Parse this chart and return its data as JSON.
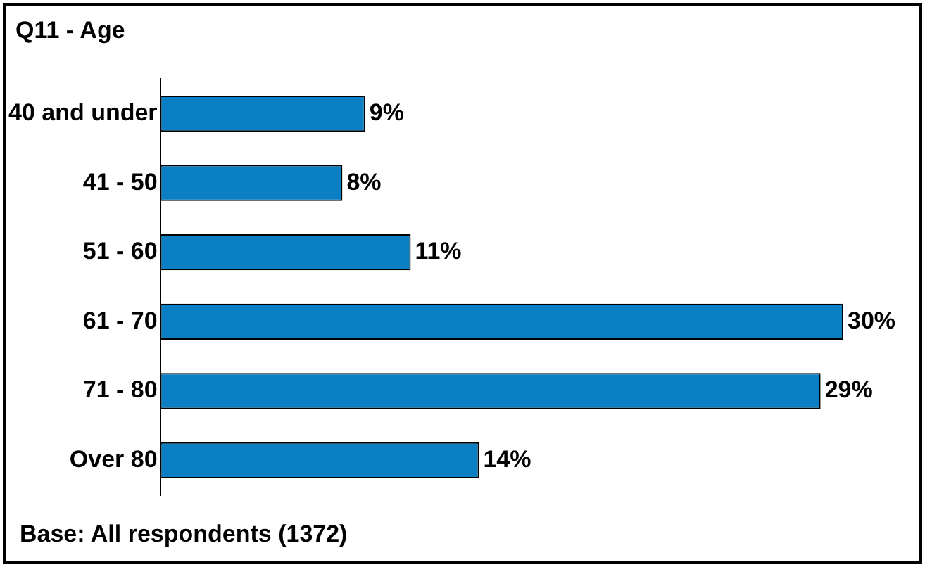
{
  "chart_data": {
    "type": "bar",
    "title": "Q11 - Age",
    "orientation": "horizontal",
    "categories": [
      "40 and under",
      "41 - 50",
      "51 - 60",
      "61 - 70",
      "71 - 80",
      "Over 80"
    ],
    "values": [
      9,
      8,
      11,
      30,
      29,
      14
    ],
    "color": "#0a7fc4",
    "value_labels": [
      "9%",
      "8%",
      "11%",
      "30%",
      "29%",
      "14%"
    ],
    "grid": false,
    "legend": false,
    "annotations": [
      "Base: All respondents (1372)"
    ]
  }
}
